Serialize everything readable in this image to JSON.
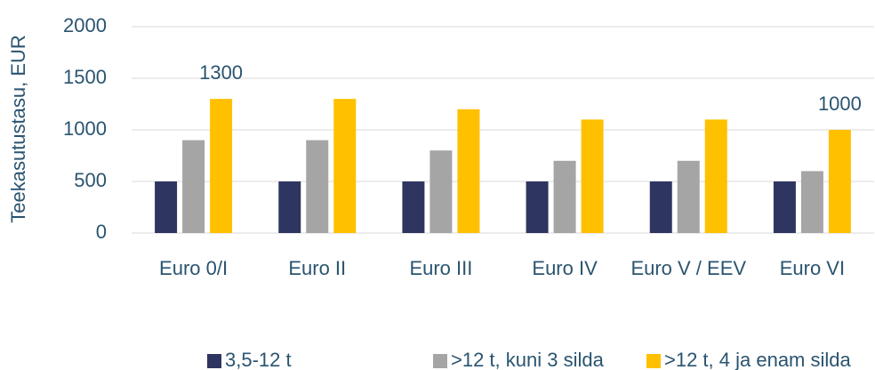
{
  "chart_data": {
    "type": "bar",
    "y_label": "Teekasutustasu, EUR",
    "categories": [
      "Euro 0/I",
      "Euro II",
      "Euro III",
      "Euro IV",
      "Euro V / EEV",
      "Euro VI"
    ],
    "series": [
      {
        "name": "3,5-12 t",
        "color": "#2e3560",
        "values": [
          500,
          500,
          500,
          500,
          500,
          500
        ]
      },
      {
        "name": ">12 t, kuni 3 silda",
        "color": "#a5a5a5",
        "values": [
          900,
          900,
          800,
          700,
          700,
          600
        ]
      },
      {
        "name": ">12 t, 4 ja enam silda",
        "color": "#ffc000",
        "values": [
          1300,
          1300,
          1200,
          1100,
          1100,
          1000
        ],
        "value_labels": [
          "1300",
          null,
          null,
          null,
          null,
          "1000"
        ]
      }
    ],
    "ylim": [
      0,
      2000
    ],
    "yticks": [
      0,
      500,
      1000,
      1500,
      2000
    ],
    "grid": true,
    "legend": "bottom"
  }
}
